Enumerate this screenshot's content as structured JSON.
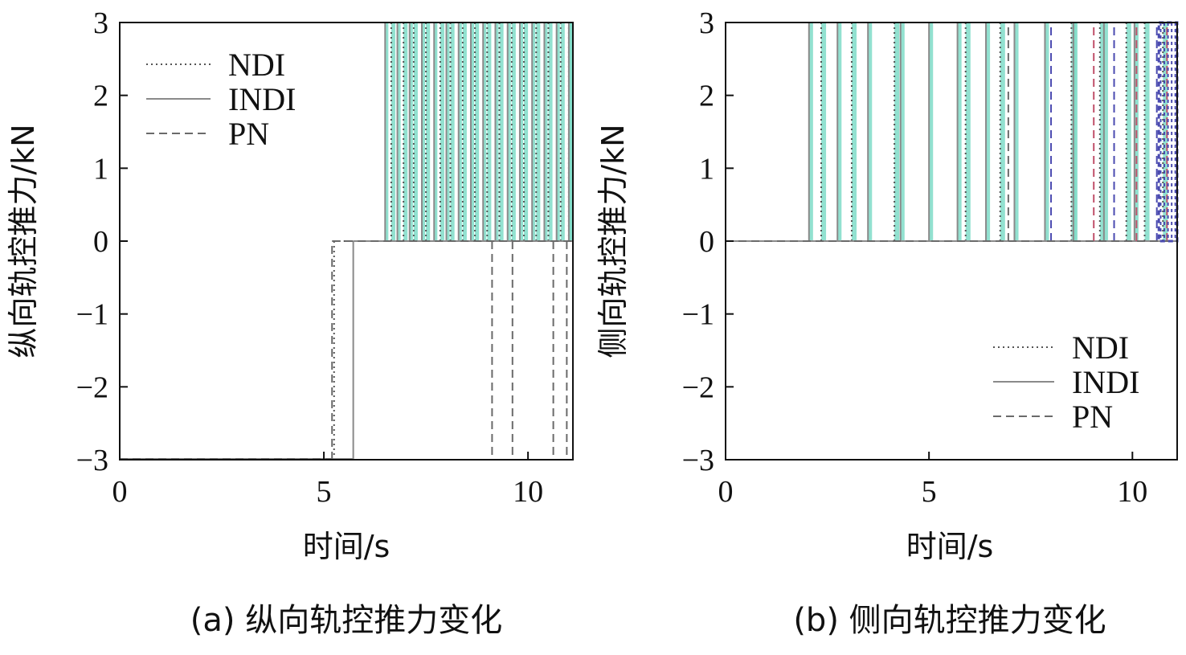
{
  "chart_data": [
    {
      "type": "line",
      "ylabel": "纵向轨控推力/kN",
      "xlabel": "时间/s",
      "caption": "(a) 纵向轨控推力变化",
      "xlim": [
        0,
        11.1
      ],
      "ylim": [
        -3,
        3
      ],
      "xticks": [
        "0",
        "5",
        "10"
      ],
      "xtick_values": [
        0,
        5,
        10
      ],
      "yticks": [
        "3",
        "2",
        "1",
        "0",
        "−1",
        "−2",
        "−3"
      ],
      "ytick_values": [
        3,
        2,
        1,
        0,
        -1,
        -2,
        -3
      ],
      "legend_position": "top-left",
      "legend": [
        "NDI",
        "INDI",
        "PN"
      ],
      "series": [
        {
          "name": "NDI",
          "color": "#555555",
          "dash": "2,4",
          "pulses": [
            [
              6.65,
              3
            ],
            [
              6.95,
              3
            ],
            [
              7.2,
              3
            ],
            [
              7.5,
              3
            ],
            [
              7.85,
              3
            ],
            [
              8.1,
              3
            ],
            [
              8.4,
              3
            ],
            [
              8.7,
              3
            ],
            [
              9.0,
              3
            ],
            [
              9.3,
              3
            ],
            [
              9.6,
              3
            ],
            [
              9.9,
              3
            ],
            [
              10.2,
              3
            ],
            [
              10.5,
              3
            ],
            [
              10.8,
              3
            ],
            [
              11.0,
              3
            ]
          ],
          "pulse_width": 0.1,
          "start": -3,
          "switch_t": 5.25
        },
        {
          "name": "INDI",
          "color": "#8a8a8a",
          "dash": "",
          "pulses": [
            [
              6.5,
              3
            ],
            [
              6.8,
              3
            ],
            [
              7.1,
              3
            ],
            [
              7.4,
              3
            ],
            [
              7.7,
              3
            ],
            [
              8.0,
              3
            ],
            [
              8.3,
              3
            ],
            [
              8.6,
              3
            ],
            [
              8.9,
              3
            ],
            [
              9.2,
              3
            ],
            [
              9.5,
              3
            ],
            [
              9.8,
              3
            ],
            [
              10.1,
              3
            ],
            [
              10.4,
              3
            ],
            [
              10.7,
              3
            ],
            [
              11.0,
              3
            ]
          ],
          "pulse_width": 0.08,
          "start": -3,
          "switch_t": 5.72
        },
        {
          "name": "PN",
          "color": "#6a6a6a",
          "dash": "10,6",
          "pulses": [
            [
              9.12,
              -3
            ],
            [
              9.62,
              -3
            ],
            [
              10.62,
              -3
            ],
            [
              10.95,
              -3
            ]
          ],
          "pulse_width": 0.12,
          "start": -3,
          "switch_t": 5.2
        }
      ],
      "fill_color": "#7fdcc8"
    },
    {
      "type": "line",
      "ylabel": "侧向轨控推力/kN",
      "xlabel": "时间/s",
      "caption": "(b) 侧向轨控推力变化",
      "xlim": [
        0,
        11.1
      ],
      "ylim": [
        -3,
        3
      ],
      "xticks": [
        "0",
        "5",
        "10"
      ],
      "xtick_values": [
        0,
        5,
        10
      ],
      "yticks": [
        "3",
        "2",
        "1",
        "0",
        "−1",
        "−2",
        "−3"
      ],
      "ytick_values": [
        3,
        2,
        1,
        0,
        -1,
        -2,
        -3
      ],
      "legend_position": "bottom-right",
      "legend": [
        "NDI",
        "INDI",
        "PN"
      ],
      "series": [
        {
          "name": "NDI",
          "color": "#555555",
          "dash": "2,4",
          "pulses": [
            [
              2.35,
              3
            ],
            [
              3.1,
              3
            ],
            [
              4.15,
              3
            ],
            [
              5.9,
              3
            ],
            [
              6.75,
              3
            ],
            [
              8.5,
              3
            ],
            [
              9.2,
              3
            ],
            [
              9.85,
              3
            ],
            [
              10.3,
              3
            ],
            [
              10.75,
              3
            ]
          ],
          "pulse_width": 0.12,
          "start": 0
        },
        {
          "name": "INDI",
          "color": "#8a8a8a",
          "dash": "",
          "pulses": [
            [
              2.05,
              3
            ],
            [
              2.75,
              3
            ],
            [
              3.5,
              3
            ],
            [
              4.3,
              3
            ],
            [
              5.0,
              3
            ],
            [
              5.7,
              3
            ],
            [
              6.4,
              3
            ],
            [
              7.1,
              3
            ],
            [
              7.85,
              3
            ],
            [
              8.55,
              3
            ],
            [
              9.3,
              3
            ],
            [
              10.05,
              3
            ]
          ],
          "pulse_width": 0.1,
          "start": 0
        },
        {
          "name": "PN",
          "color": "#6a6a6a",
          "dash": "10,6",
          "pulses": [
            [
              6.95,
              3
            ],
            [
              8.0,
              3
            ],
            [
              9.05,
              3
            ],
            [
              9.55,
              3
            ],
            [
              10.1,
              3
            ],
            [
              10.6,
              3
            ],
            [
              10.85,
              3
            ]
          ],
          "pulse_width": 0.1,
          "start": 0
        }
      ],
      "fill_color": "#7fdcc8",
      "accent_colors": [
        "#c0506a",
        "#4a4ab0"
      ]
    }
  ]
}
